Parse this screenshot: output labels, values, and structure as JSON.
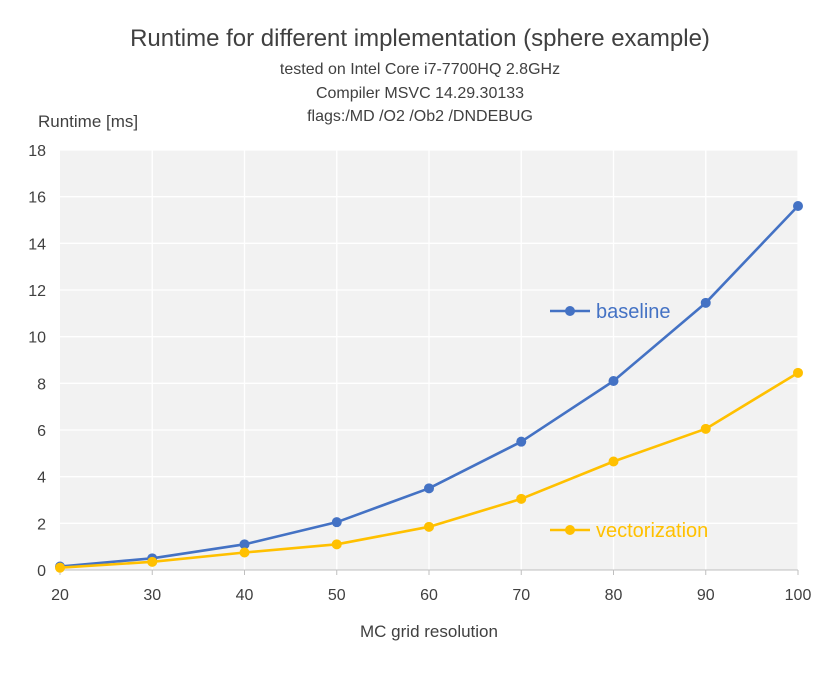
{
  "chart_data": {
    "type": "line",
    "title": "Runtime for different implementation (sphere example)",
    "subtitle_lines": [
      "tested on Intel Core i7-7700HQ 2.8GHz",
      "Compiler MSVC 14.29.30133",
      "flags:/MD /O2 /Ob2 /DNDEBUG"
    ],
    "xlabel": "MC grid resolution",
    "ylabel": "Runtime [ms]",
    "x": [
      20,
      30,
      40,
      50,
      60,
      70,
      80,
      90,
      100
    ],
    "xlim": [
      20,
      100
    ],
    "ylim": [
      0,
      18
    ],
    "xticks": [
      20,
      30,
      40,
      50,
      60,
      70,
      80,
      90,
      100
    ],
    "yticks": [
      0,
      2,
      4,
      6,
      8,
      10,
      12,
      14,
      16,
      18
    ],
    "grid": true,
    "series": [
      {
        "name": "baseline",
        "color": "#4472C4",
        "values": [
          0.15,
          0.5,
          1.1,
          2.05,
          3.5,
          5.5,
          8.1,
          11.45,
          15.6
        ]
      },
      {
        "name": "vectorization",
        "color": "#FFC000",
        "values": [
          0.1,
          0.35,
          0.75,
          1.1,
          1.85,
          3.05,
          4.65,
          6.05,
          8.45
        ]
      }
    ]
  }
}
